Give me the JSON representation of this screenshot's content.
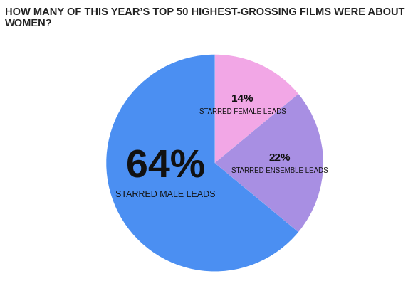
{
  "chart_data": {
    "type": "pie",
    "title": "HOW MANY OF THIS YEAR’S TOP 50 HIGHEST-GROSSING FILMS WERE ABOUT WOMEN?",
    "categories": [
      "STARRED FEMALE LEADS",
      "STARRED ENSEMBLE LEADS",
      "STARRED MALE LEADS"
    ],
    "values": [
      14,
      22,
      64
    ],
    "value_labels": [
      "14%",
      "22%",
      "64%"
    ],
    "colors": [
      "#f2a7e6",
      "#a88fe3",
      "#4b8ff2"
    ],
    "data_labels": true
  }
}
